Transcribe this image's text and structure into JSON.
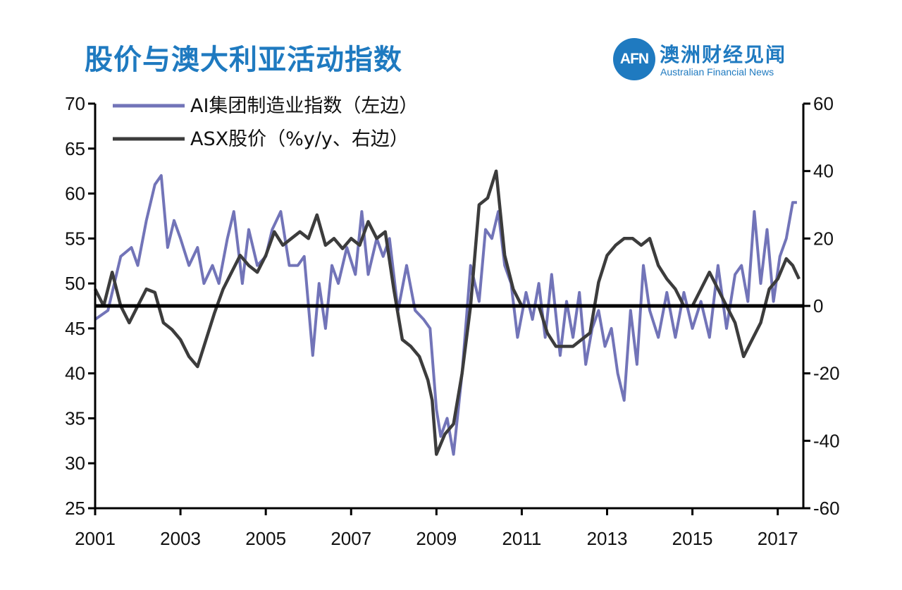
{
  "header": {
    "title": "股价与澳大利亚活动指数",
    "logo_mark": "AFN",
    "logo_cn": "澳洲财经见闻",
    "logo_en": "Australian Financial News"
  },
  "chart_data": {
    "type": "line",
    "x_range": [
      2001,
      2017.6
    ],
    "x_ticks": [
      "2001",
      "2003",
      "2005",
      "2007",
      "2009",
      "2011",
      "2013",
      "2015",
      "2017"
    ],
    "y_left": {
      "range": [
        25,
        70
      ],
      "ticks": [
        "25",
        "30",
        "35",
        "40",
        "45",
        "50",
        "55",
        "60",
        "65",
        "70"
      ]
    },
    "y_right": {
      "range": [
        -60,
        60
      ],
      "ticks": [
        "-60",
        "-40",
        "-20",
        "0",
        "20",
        "40",
        "60"
      ]
    },
    "zero_line": 0,
    "grid": false,
    "legend_position": "top-left",
    "series": [
      {
        "name": "AI集团制造业指数（左边）",
        "axis": "left",
        "color": "#7274b8",
        "x": [
          2001.0,
          2001.3,
          2001.6,
          2001.85,
          2002.0,
          2002.2,
          2002.4,
          2002.55,
          2002.7,
          2002.85,
          2003.0,
          2003.2,
          2003.4,
          2003.55,
          2003.75,
          2003.9,
          2004.1,
          2004.25,
          2004.45,
          2004.6,
          2004.8,
          2005.0,
          2005.15,
          2005.35,
          2005.55,
          2005.75,
          2005.9,
          2006.1,
          2006.25,
          2006.4,
          2006.55,
          2006.7,
          2006.9,
          2007.1,
          2007.25,
          2007.4,
          2007.6,
          2007.75,
          2007.9,
          2008.1,
          2008.3,
          2008.5,
          2008.7,
          2008.85,
          2009.0,
          2009.1,
          2009.25,
          2009.4,
          2009.6,
          2009.8,
          2010.0,
          2010.15,
          2010.3,
          2010.45,
          2010.6,
          2010.75,
          2010.9,
          2011.1,
          2011.25,
          2011.4,
          2011.55,
          2011.7,
          2011.9,
          2012.05,
          2012.2,
          2012.35,
          2012.5,
          2012.65,
          2012.8,
          2012.95,
          2013.1,
          2013.25,
          2013.4,
          2013.55,
          2013.7,
          2013.85,
          2014.0,
          2014.2,
          2014.4,
          2014.6,
          2014.8,
          2015.0,
          2015.2,
          2015.4,
          2015.6,
          2015.8,
          2016.0,
          2016.15,
          2016.3,
          2016.45,
          2016.6,
          2016.75,
          2016.9,
          2017.05,
          2017.2,
          2017.35,
          2017.45
        ],
        "y": [
          46,
          47,
          53,
          54,
          52,
          57,
          61,
          62,
          54,
          57,
          55,
          52,
          54,
          50,
          52,
          50,
          55,
          58,
          50,
          56,
          52,
          53,
          56,
          58,
          52,
          52,
          53,
          42,
          50,
          45,
          52,
          50,
          54,
          51,
          58,
          51,
          55,
          53,
          55,
          47,
          52,
          47,
          46,
          45,
          36,
          33,
          35,
          31,
          40,
          52,
          48,
          56,
          55,
          58,
          52,
          50,
          44,
          49,
          46,
          50,
          44,
          51,
          42,
          48,
          44,
          49,
          41,
          45,
          47,
          43,
          45,
          40,
          37,
          47,
          41,
          52,
          47,
          44,
          49,
          44,
          49,
          45,
          48,
          44,
          52,
          45,
          51,
          52,
          48,
          58,
          50,
          56,
          48,
          53,
          55,
          59,
          59
        ]
      },
      {
        "name": "ASX股价（%y/y、右边）",
        "axis": "right",
        "color": "#3c3c3c",
        "x": [
          2001.0,
          2001.2,
          2001.4,
          2001.6,
          2001.8,
          2002.0,
          2002.2,
          2002.4,
          2002.6,
          2002.8,
          2003.0,
          2003.2,
          2003.4,
          2003.6,
          2003.8,
          2004.0,
          2004.2,
          2004.4,
          2004.6,
          2004.8,
          2005.0,
          2005.2,
          2005.4,
          2005.6,
          2005.8,
          2006.0,
          2006.2,
          2006.4,
          2006.6,
          2006.8,
          2007.0,
          2007.2,
          2007.4,
          2007.6,
          2007.8,
          2008.0,
          2008.2,
          2008.4,
          2008.6,
          2008.8,
          2008.9,
          2009.0,
          2009.2,
          2009.4,
          2009.6,
          2009.8,
          2010.0,
          2010.2,
          2010.4,
          2010.6,
          2010.8,
          2011.0,
          2011.2,
          2011.4,
          2011.6,
          2011.8,
          2012.0,
          2012.2,
          2012.4,
          2012.6,
          2012.8,
          2013.0,
          2013.2,
          2013.4,
          2013.6,
          2013.8,
          2014.0,
          2014.2,
          2014.4,
          2014.6,
          2014.8,
          2015.0,
          2015.2,
          2015.4,
          2015.6,
          2015.8,
          2016.0,
          2016.2,
          2016.4,
          2016.6,
          2016.8,
          2017.0,
          2017.2,
          2017.35,
          2017.5
        ],
        "y": [
          5,
          0,
          10,
          0,
          -5,
          0,
          5,
          4,
          -5,
          -7,
          -10,
          -15,
          -18,
          -10,
          -2,
          5,
          10,
          15,
          12,
          10,
          15,
          22,
          18,
          20,
          22,
          20,
          27,
          18,
          20,
          17,
          20,
          18,
          25,
          20,
          22,
          5,
          -10,
          -12,
          -15,
          -22,
          -28,
          -44,
          -38,
          -35,
          -20,
          0,
          30,
          32,
          40,
          15,
          5,
          0,
          0,
          0,
          -8,
          -12,
          -12,
          -12,
          -10,
          -8,
          7,
          15,
          18,
          20,
          20,
          18,
          20,
          12,
          8,
          5,
          0,
          0,
          5,
          10,
          5,
          0,
          -5,
          -15,
          -10,
          -5,
          5,
          8,
          14,
          12,
          8
        ]
      }
    ]
  }
}
